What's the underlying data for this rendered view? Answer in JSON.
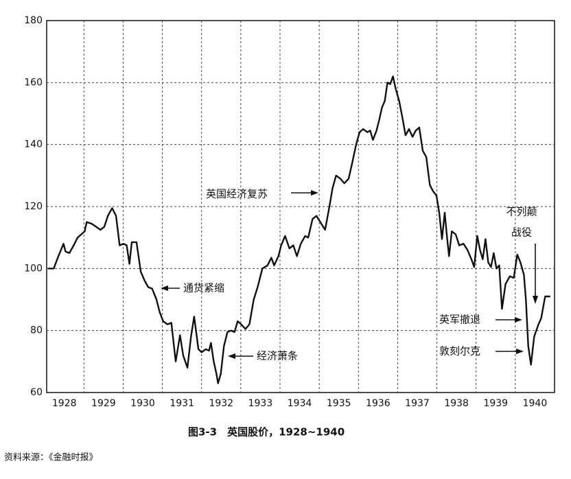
{
  "chart_data": {
    "type": "line",
    "caption": "图3-3　英国股价，1928~1940",
    "source": "资料来源：《金融时报》",
    "annotations": [
      "英国经济复苏",
      "通货紧缩",
      "经济萧条",
      "不列颠",
      "战役",
      "英军撤退",
      "敦刻尔克"
    ],
    "x": [
      1928.08,
      1928.23,
      1928.35,
      1928.48,
      1928.53,
      1928.63,
      1928.74,
      1928.84,
      1928.93,
      1929.02,
      1929.07,
      1929.19,
      1929.31,
      1929.42,
      1929.52,
      1929.61,
      1929.72,
      1929.82,
      1929.91,
      1930.01,
      1930.09,
      1930.16,
      1930.22,
      1930.34,
      1930.45,
      1930.55,
      1930.64,
      1930.74,
      1930.85,
      1930.93,
      1931.02,
      1931.13,
      1931.23,
      1931.34,
      1931.45,
      1931.53,
      1931.64,
      1931.73,
      1931.81,
      1931.92,
      1932.0,
      1932.11,
      1932.19,
      1932.24,
      1932.31,
      1932.38,
      1932.42,
      1932.49,
      1932.57,
      1932.66,
      1932.75,
      1932.84,
      1932.92,
      1933.01,
      1933.12,
      1933.22,
      1933.33,
      1933.43,
      1933.55,
      1933.68,
      1933.78,
      1933.85,
      1933.96,
      1934.03,
      1934.13,
      1934.24,
      1934.34,
      1934.43,
      1934.53,
      1934.64,
      1934.72,
      1934.83,
      1934.93,
      1935.05,
      1935.15,
      1935.26,
      1935.34,
      1935.43,
      1935.54,
      1935.64,
      1935.75,
      1935.84,
      1935.94,
      1936.03,
      1936.12,
      1936.23,
      1936.3,
      1936.37,
      1936.46,
      1936.53,
      1936.6,
      1936.67,
      1936.74,
      1936.81,
      1936.88,
      1936.95,
      1937.04,
      1937.13,
      1937.2,
      1937.29,
      1937.38,
      1937.46,
      1937.55,
      1937.64,
      1937.73,
      1937.82,
      1937.9,
      1937.99,
      1938.06,
      1938.13,
      1938.2,
      1938.26,
      1938.31,
      1938.38,
      1938.48,
      1938.57,
      1938.68,
      1938.78,
      1938.88,
      1938.95,
      1939.03,
      1939.1,
      1939.17,
      1939.24,
      1939.31,
      1939.38,
      1939.45,
      1939.52,
      1939.59,
      1939.66,
      1939.75,
      1939.86,
      1939.96,
      1940.05,
      1940.13,
      1940.22,
      1940.27,
      1940.33,
      1940.4,
      1940.48,
      1940.59,
      1940.66,
      1940.76,
      1940.89
    ],
    "series": [
      {
        "color": "#111111",
        "values": [
          100,
          100,
          104,
          108,
          105.5,
          105,
          107.5,
          110,
          111,
          112,
          115,
          114.5,
          113.5,
          112.5,
          113.5,
          117,
          119.5,
          117,
          107.5,
          108,
          107.5,
          101.5,
          108.5,
          108.5,
          99,
          96,
          94,
          93.5,
          90,
          86,
          83,
          82,
          82.5,
          70,
          78.5,
          72,
          68,
          78,
          84.5,
          74,
          73,
          74,
          73.5,
          76,
          70,
          66,
          63,
          66,
          75,
          79.5,
          80,
          79.5,
          83,
          82,
          80.5,
          82,
          90,
          94,
          100,
          101,
          103.5,
          101,
          104,
          107.5,
          110.5,
          106.5,
          107.5,
          104,
          108,
          110.5,
          110,
          116,
          117,
          114.5,
          112.5,
          120,
          126,
          130,
          129,
          127.5,
          129,
          134,
          140,
          144,
          145,
          144,
          144.5,
          141.5,
          144.5,
          148,
          152,
          154,
          160,
          159.5,
          162,
          158,
          154,
          148,
          143,
          145,
          142.5,
          144.5,
          145.5,
          138,
          136,
          127,
          125,
          123.5,
          118,
          109.5,
          118,
          110,
          104,
          112,
          111,
          107.5,
          108,
          106,
          103,
          100.5,
          110.5,
          106,
          103,
          109.5,
          102,
          100.5,
          105,
          100,
          101,
          87,
          95,
          97.5,
          97,
          104.5,
          102,
          98,
          90,
          75,
          69,
          78,
          82,
          84,
          91,
          91
        ]
      }
    ],
    "xlim": [
      1928.05,
      1941.0
    ],
    "xticks": [
      1928,
      1929,
      1930,
      1931,
      1932,
      1933,
      1934,
      1935,
      1936,
      1937,
      1938,
      1939,
      1940
    ],
    "ylim": [
      60,
      180
    ],
    "yticks": [
      60,
      80,
      100,
      120,
      140,
      160,
      180
    ],
    "grid": true
  }
}
